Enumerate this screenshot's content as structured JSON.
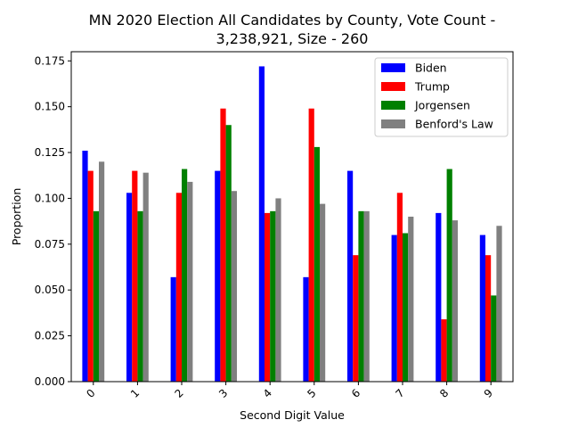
{
  "chart_data": {
    "type": "bar",
    "title_line1": "MN 2020 Election All Candidates by County, Vote Count -",
    "title_line2": "3,238,921, Size - 260",
    "xlabel": "Second Digit Value",
    "ylabel": "Proportion",
    "ylim": [
      0,
      0.18
    ],
    "yticks": [
      "0.000",
      "0.025",
      "0.050",
      "0.075",
      "0.100",
      "0.125",
      "0.150",
      "0.175"
    ],
    "ytick_values": [
      0,
      0.025,
      0.05,
      0.075,
      0.1,
      0.125,
      0.15,
      0.175
    ],
    "categories": [
      "0",
      "1",
      "2",
      "3",
      "4",
      "5",
      "6",
      "7",
      "8",
      "9"
    ],
    "legend_position": "upper-right",
    "grid": false,
    "series": [
      {
        "name": "Biden",
        "color": "#0000ff",
        "values": [
          0.126,
          0.103,
          0.057,
          0.115,
          0.172,
          0.057,
          0.115,
          0.08,
          0.092,
          0.08
        ]
      },
      {
        "name": "Trump",
        "color": "#ff0000",
        "values": [
          0.115,
          0.115,
          0.103,
          0.149,
          0.092,
          0.149,
          0.069,
          0.103,
          0.034,
          0.069
        ]
      },
      {
        "name": "Jorgensen",
        "color": "#008000",
        "values": [
          0.093,
          0.093,
          0.116,
          0.14,
          0.093,
          0.128,
          0.093,
          0.081,
          0.116,
          0.047
        ]
      },
      {
        "name": "Benford's Law",
        "color": "#808080",
        "values": [
          0.12,
          0.114,
          0.109,
          0.104,
          0.1,
          0.097,
          0.093,
          0.09,
          0.088,
          0.085
        ]
      }
    ]
  }
}
